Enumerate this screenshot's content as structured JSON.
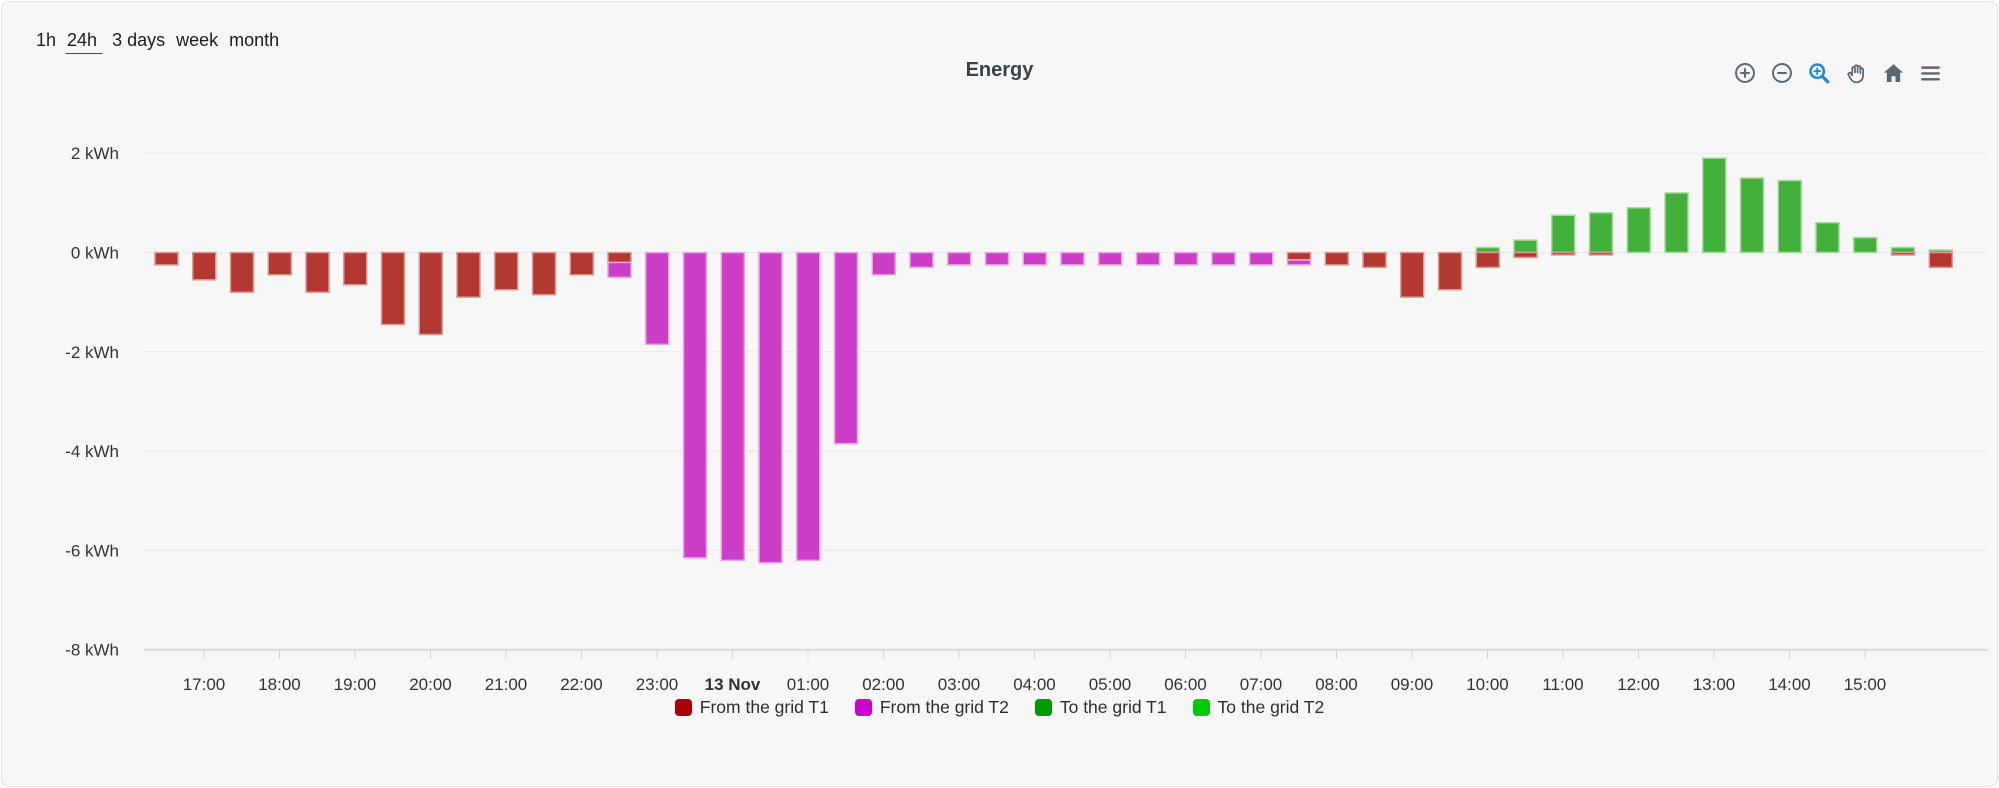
{
  "range_selector": {
    "options": [
      {
        "label": "1h",
        "selected": false
      },
      {
        "label": "24h",
        "selected": true
      },
      {
        "label": "3 days",
        "selected": false
      },
      {
        "label": "week",
        "selected": false
      },
      {
        "label": "month",
        "selected": false
      }
    ]
  },
  "title": "Energy",
  "toolbar": {
    "icon_color": "#5d6772",
    "active_icon_color": "#2288d8",
    "active_tool": "zoom"
  },
  "chart_data": {
    "type": "bar",
    "stacked": true,
    "title": "Energy",
    "unit": "kWh",
    "ylim": [
      -8,
      2
    ],
    "grid": true,
    "legend_position": "bottom",
    "ytick_values": [
      2,
      0,
      -2,
      -4,
      -6,
      -8
    ],
    "ytick_labels": [
      "2 kWh",
      "0 kWh",
      "-2 kWh",
      "-4 kWh",
      "-6 kWh",
      "-8 kWh"
    ],
    "xtick_labels": [
      "17:00",
      "18:00",
      "19:00",
      "20:00",
      "21:00",
      "22:00",
      "23:00",
      "13 Nov",
      "01:00",
      "02:00",
      "03:00",
      "04:00",
      "05:00",
      "06:00",
      "07:00",
      "08:00",
      "09:00",
      "10:00",
      "11:00",
      "12:00",
      "13:00",
      "14:00",
      "15:00"
    ],
    "bold_xtick": "13 Nov",
    "categories": [
      "16:30",
      "17:00",
      "17:30",
      "18:00",
      "18:30",
      "19:00",
      "19:30",
      "20:00",
      "20:30",
      "21:00",
      "21:30",
      "22:00",
      "22:30",
      "23:00",
      "23:30",
      "00:00",
      "00:30",
      "01:00",
      "01:30",
      "02:00",
      "02:30",
      "03:00",
      "03:30",
      "04:00",
      "04:30",
      "05:00",
      "05:30",
      "06:00",
      "06:30",
      "07:00",
      "07:30",
      "08:00",
      "08:30",
      "09:00",
      "09:30",
      "10:00",
      "10:30",
      "11:00",
      "11:30",
      "12:00",
      "12:30",
      "13:00",
      "13:30",
      "14:00",
      "14:30",
      "15:00",
      "15:30",
      "16:00"
    ],
    "series": [
      {
        "name": "From the grid T1",
        "color": "#aa0000",
        "bar_fill": "#b43832",
        "bar_stroke": "#dc9a95",
        "values": [
          -0.25,
          -0.55,
          -0.8,
          -0.45,
          -0.8,
          -0.65,
          -1.45,
          -1.65,
          -0.9,
          -0.75,
          -0.85,
          -0.45,
          -0.2,
          0,
          0,
          0,
          0,
          0,
          0,
          0,
          0,
          0,
          0,
          0,
          0,
          0,
          0,
          0,
          0,
          0,
          -0.15,
          -0.25,
          -0.3,
          -0.9,
          -0.75,
          -0.3,
          -0.1,
          -0.05,
          -0.05,
          0,
          0,
          0,
          0,
          0,
          0,
          0,
          -0.05,
          -0.3
        ]
      },
      {
        "name": "From the grid T2",
        "color": "#cc00cc",
        "bar_fill": "#cd3ec8",
        "bar_stroke": "#e8a6e4",
        "values": [
          0,
          0,
          0,
          0,
          0,
          0,
          0,
          0,
          0,
          0,
          0,
          0,
          -0.3,
          -1.85,
          -6.15,
          -6.2,
          -6.25,
          -6.2,
          -3.85,
          -0.45,
          -0.3,
          -0.25,
          -0.25,
          -0.25,
          -0.25,
          -0.25,
          -0.25,
          -0.25,
          -0.25,
          -0.25,
          -0.1,
          0,
          0,
          0,
          0,
          0,
          0,
          0,
          0,
          0,
          0,
          0,
          0,
          0,
          0,
          0,
          0,
          0
        ]
      },
      {
        "name": "To the grid T1",
        "color": "#009900",
        "bar_fill": "#43b03b",
        "bar_stroke": "#a6d89f",
        "values": [
          0,
          0,
          0,
          0,
          0,
          0,
          0,
          0,
          0,
          0,
          0,
          0,
          0,
          0,
          0,
          0,
          0,
          0,
          0,
          0,
          0,
          0,
          0,
          0,
          0,
          0,
          0,
          0,
          0,
          0,
          0,
          0,
          0,
          0,
          0,
          0.1,
          0.25,
          0.75,
          0.8,
          0.9,
          1.2,
          1.9,
          1.5,
          1.45,
          0.6,
          0.3,
          0.1,
          0.05
        ]
      },
      {
        "name": "To the grid T2",
        "color": "#00cc00",
        "bar_fill": "#4ccc44",
        "bar_stroke": "#abe6a2",
        "values": [
          0,
          0,
          0,
          0,
          0,
          0,
          0,
          0,
          0,
          0,
          0,
          0,
          0,
          0,
          0,
          0,
          0,
          0,
          0,
          0,
          0,
          0,
          0,
          0,
          0,
          0,
          0,
          0,
          0,
          0,
          0,
          0,
          0,
          0,
          0,
          0,
          0,
          0,
          0,
          0,
          0,
          0,
          0,
          0,
          0,
          0,
          0,
          0
        ]
      }
    ]
  },
  "legend": {
    "items": [
      {
        "label": "From the grid T1",
        "color": "#aa0000"
      },
      {
        "label": "From the grid T2",
        "color": "#cc00cc"
      },
      {
        "label": "To the grid T1",
        "color": "#009900"
      },
      {
        "label": "To the grid T2",
        "color": "#00cc00"
      }
    ]
  }
}
